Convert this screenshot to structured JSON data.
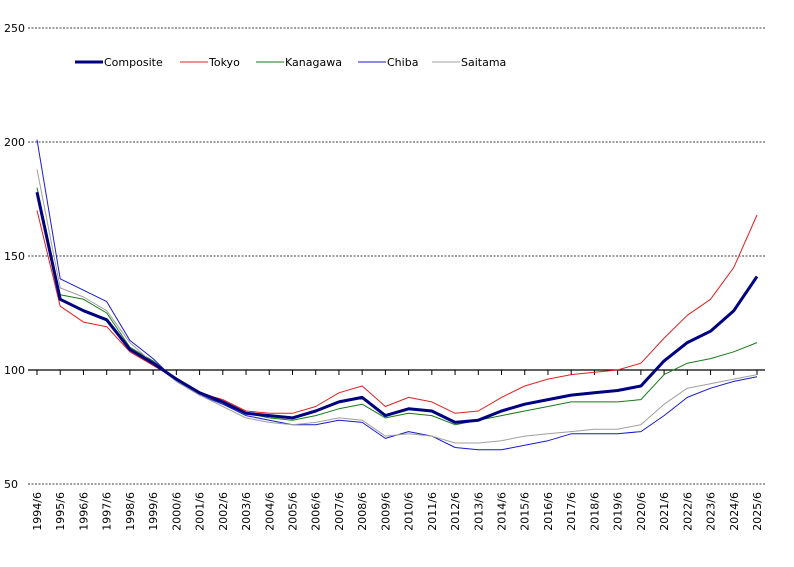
{
  "chart_data": {
    "type": "line",
    "title": "",
    "xlabel": "",
    "ylabel": "",
    "ylim": [
      50,
      250
    ],
    "yticks": [
      50,
      100,
      150,
      200,
      250
    ],
    "ytick_labels": [
      "50",
      "100",
      "150",
      "200",
      "250"
    ],
    "grid": "horizontal dashed",
    "legend_position": "top-left",
    "x": [
      "1994/6",
      "1995/6",
      "1996/6",
      "1997/6",
      "1998/6",
      "1999/6",
      "2000/6",
      "2001/6",
      "2002/6",
      "2003/6",
      "2004/6",
      "2005/6",
      "2006/6",
      "2007/6",
      "2008/6",
      "2009/6",
      "2010/6",
      "2011/6",
      "2012/6",
      "2013/6",
      "2014/6",
      "2015/6",
      "2016/6",
      "2017/6",
      "2018/6",
      "2019/6",
      "2020/6",
      "2021/6",
      "2022/6",
      "2023/6",
      "2024/6",
      "2025/6"
    ],
    "series": [
      {
        "name": "Composite",
        "color": "#000080",
        "width": 3,
        "values": [
          178,
          131,
          126,
          122,
          109,
          103,
          96,
          90,
          86,
          81,
          80,
          79,
          82,
          86,
          88,
          80,
          83,
          82,
          77,
          78,
          82,
          85,
          87,
          89,
          90,
          91,
          93,
          104,
          112,
          117,
          126,
          141
        ]
      },
      {
        "name": "Tokyo",
        "color": "#e02020",
        "width": 1,
        "values": [
          170,
          128,
          121,
          119,
          108,
          102,
          96,
          90,
          87,
          82,
          81,
          81,
          84,
          90,
          93,
          84,
          88,
          86,
          81,
          82,
          88,
          93,
          96,
          98,
          99,
          100,
          103,
          114,
          124,
          131,
          145,
          168
        ]
      },
      {
        "name": "Kanagawa",
        "color": "#1a7a1a",
        "width": 1,
        "values": [
          180,
          133,
          131,
          125,
          110,
          104,
          96,
          90,
          85,
          81,
          79,
          78,
          80,
          83,
          85,
          79,
          81,
          80,
          76,
          78,
          80,
          82,
          84,
          86,
          86,
          86,
          87,
          98,
          103,
          105,
          108,
          112
        ]
      },
      {
        "name": "Chiba",
        "color": "#1a1acc",
        "width": 1,
        "values": [
          201,
          140,
          135,
          130,
          113,
          105,
          95,
          89,
          85,
          80,
          78,
          76,
          76,
          78,
          77,
          70,
          73,
          71,
          66,
          65,
          65,
          67,
          69,
          72,
          72,
          72,
          73,
          80,
          88,
          92,
          95,
          97
        ]
      },
      {
        "name": "Saitama",
        "color": "#a0a0a0",
        "width": 1,
        "values": [
          188,
          136,
          132,
          126,
          112,
          103,
          95,
          89,
          84,
          79,
          77,
          76,
          77,
          79,
          78,
          71,
          72,
          71,
          68,
          68,
          69,
          71,
          72,
          73,
          74,
          74,
          76,
          85,
          92,
          94,
          96,
          98
        ]
      }
    ]
  }
}
